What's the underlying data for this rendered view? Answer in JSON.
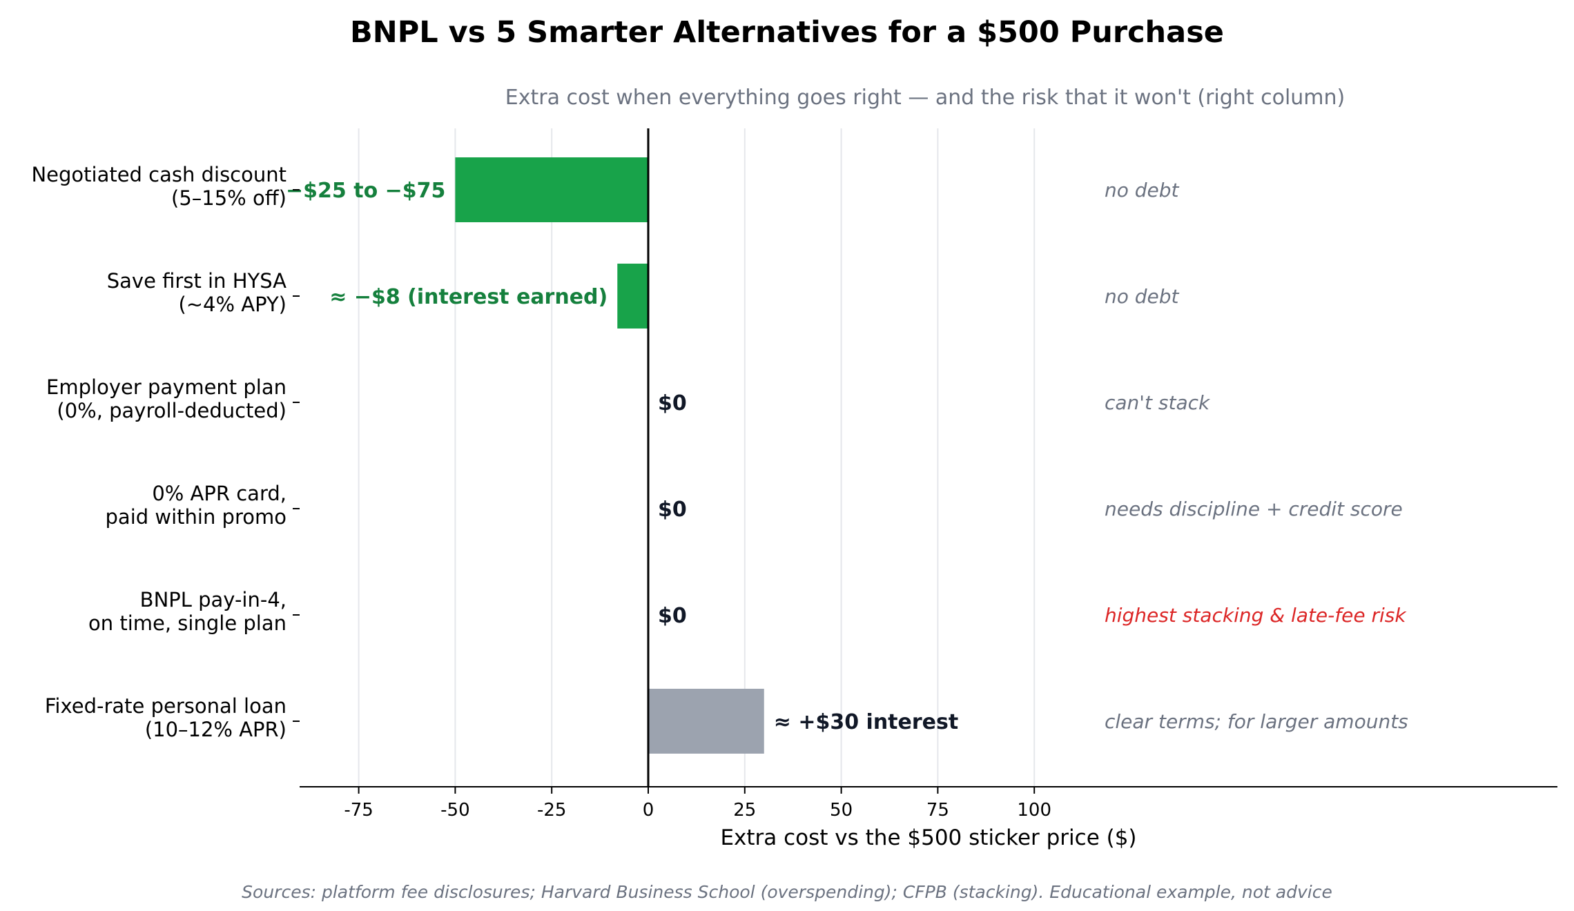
{
  "title": "BNPL vs 5 Smarter Alternatives for a $500 Purchase",
  "subtitle": "Extra cost when everything goes right — and the risk that it won't (right column)",
  "source": "Sources: platform fee disclosures; Harvard Business School (overspending); CFPB (stacking). Educational example, not advice",
  "colors": {
    "savings": "#18a34a",
    "savings_text": "#15803d",
    "cost": "#9ca3af",
    "neutral_text": "#111827",
    "note": "#6b7280",
    "warning": "#dc2626"
  },
  "chart_data": {
    "type": "bar",
    "orientation": "horizontal",
    "xlabel": "Extra cost vs the $500 sticker price ($)",
    "xticks": [
      -75,
      -50,
      -25,
      0,
      25,
      50,
      75,
      100
    ],
    "xlim": [
      -90,
      236
    ],
    "grid": "vertical",
    "categories": [
      "Negotiated cash discount\n(5–15% off)",
      "Save first in HYSA\n(~4% APY)",
      "Employer payment plan\n(0%, payroll-deducted)",
      "0% APR card,\npaid within promo",
      "BNPL pay-in-4,\non time, single plan",
      "Fixed-rate personal loan\n(10–12% APR)"
    ],
    "values": [
      -50,
      -8,
      0,
      0,
      0,
      30
    ],
    "bar_colors": [
      "savings",
      "savings",
      "cost",
      "cost",
      "cost",
      "cost"
    ],
    "value_labels": [
      "−$25 to −$75",
      "≈ −$8 (interest earned)",
      "$0",
      "$0",
      "$0",
      "≈ +$30 interest"
    ],
    "label_colors": [
      "savings_text",
      "savings_text",
      "neutral_text",
      "neutral_text",
      "neutral_text",
      "neutral_text"
    ],
    "risk_notes": [
      "no debt",
      "no debt",
      "can't stack",
      "needs discipline + credit score",
      "highest stacking & late-fee risk",
      "clear terms; for larger amounts"
    ],
    "risk_colors": [
      "note",
      "note",
      "note",
      "note",
      "warning",
      "note"
    ]
  }
}
